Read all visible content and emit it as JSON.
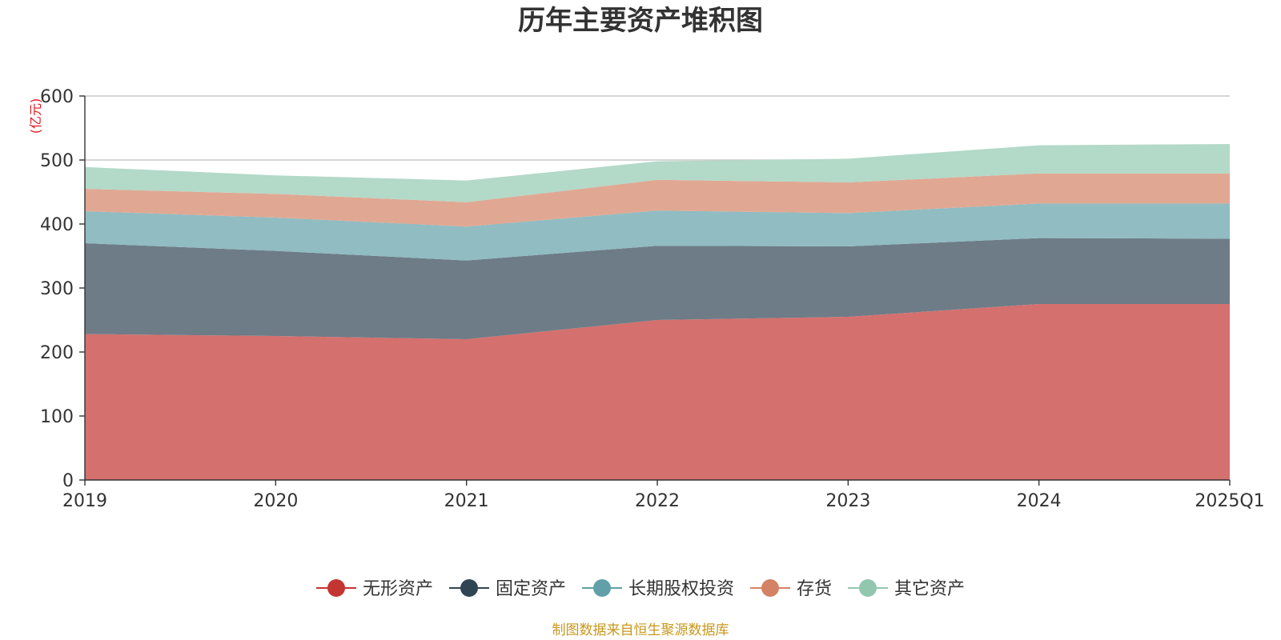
{
  "chart_data": {
    "type": "area",
    "stacked": true,
    "title": "历年主要资产堆积图",
    "unit_label": "(亿元)",
    "x": [
      "2019",
      "2020",
      "2021",
      "2022",
      "2023",
      "2024",
      "2025Q1"
    ],
    "ylim": [
      0,
      600
    ],
    "yticks": [
      0,
      100,
      200,
      300,
      400,
      500,
      600
    ],
    "grid": true,
    "legend_position": "bottom",
    "series": [
      {
        "name": "无形资产",
        "color": "#c23531",
        "fill": "#d4706e",
        "values": [
          228,
          225,
          220,
          250,
          255,
          275,
          275
        ]
      },
      {
        "name": "固定资产",
        "color": "#2f4554",
        "fill": "#6e7c87",
        "values": [
          142,
          133,
          123,
          116,
          110,
          103,
          102
        ]
      },
      {
        "name": "长期股权投资",
        "color": "#61a0a8",
        "fill": "#90bcc2",
        "values": [
          50,
          52,
          53,
          55,
          52,
          54,
          55
        ]
      },
      {
        "name": "存货",
        "color": "#d48265",
        "fill": "#e0a893",
        "values": [
          35,
          37,
          38,
          48,
          48,
          47,
          47
        ]
      },
      {
        "name": "其它资产",
        "color": "#91c7ae",
        "fill": "#b3d9c8",
        "values": [
          34,
          29,
          34,
          29,
          37,
          44,
          46
        ]
      }
    ],
    "source": "制图数据来自恒生聚源数据库"
  }
}
